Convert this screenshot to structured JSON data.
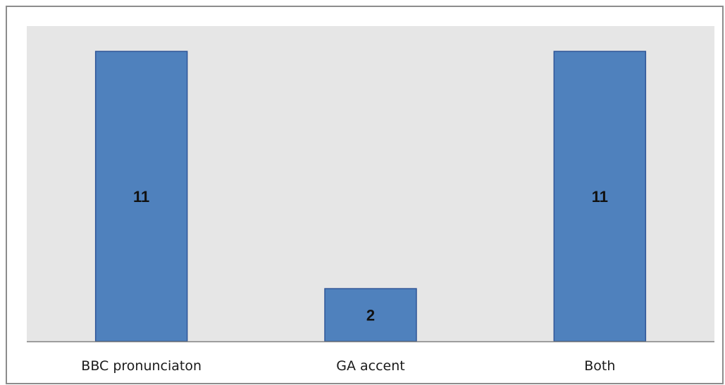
{
  "chart_data": {
    "type": "bar",
    "categories": [
      "BBC pronunciaton",
      "GA accent",
      "Both"
    ],
    "values": [
      11,
      2,
      11
    ],
    "data_labels": [
      "11",
      "2",
      "11"
    ],
    "title": "",
    "xlabel": "",
    "ylabel": "",
    "ylim": [
      0,
      12
    ],
    "grid": false,
    "legend": "none",
    "colors": {
      "bar_fill": "#4f81bd",
      "bar_stroke": "#2f5597",
      "plot_background": "#e6e6e6",
      "axis_line": "#808080"
    }
  }
}
